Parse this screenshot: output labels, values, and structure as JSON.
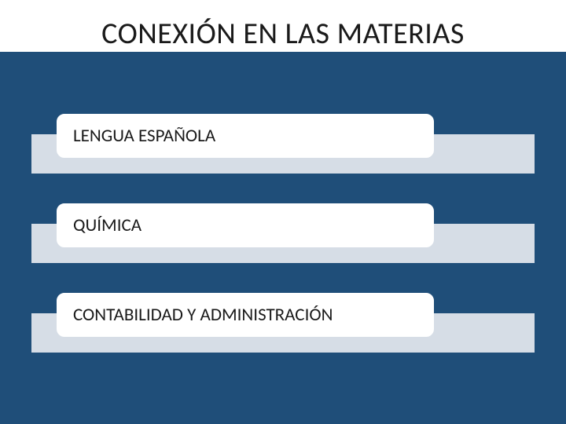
{
  "slide": {
    "title": "CONEXIÓN EN LAS MATERIAS",
    "background_color": "#1f4e79",
    "title_bg_color": "#ffffff",
    "title_color": "#1a1a1a",
    "bar_color": "#d6dde6",
    "pill_bg_color": "#ffffff",
    "pill_border_color": "#ffffff",
    "items": [
      {
        "label": "LENGUA ESPAÑOLA"
      },
      {
        "label": "QUÍMICA"
      },
      {
        "label": "CONTABILIDAD Y ADMINISTRACIÓN"
      }
    ]
  }
}
